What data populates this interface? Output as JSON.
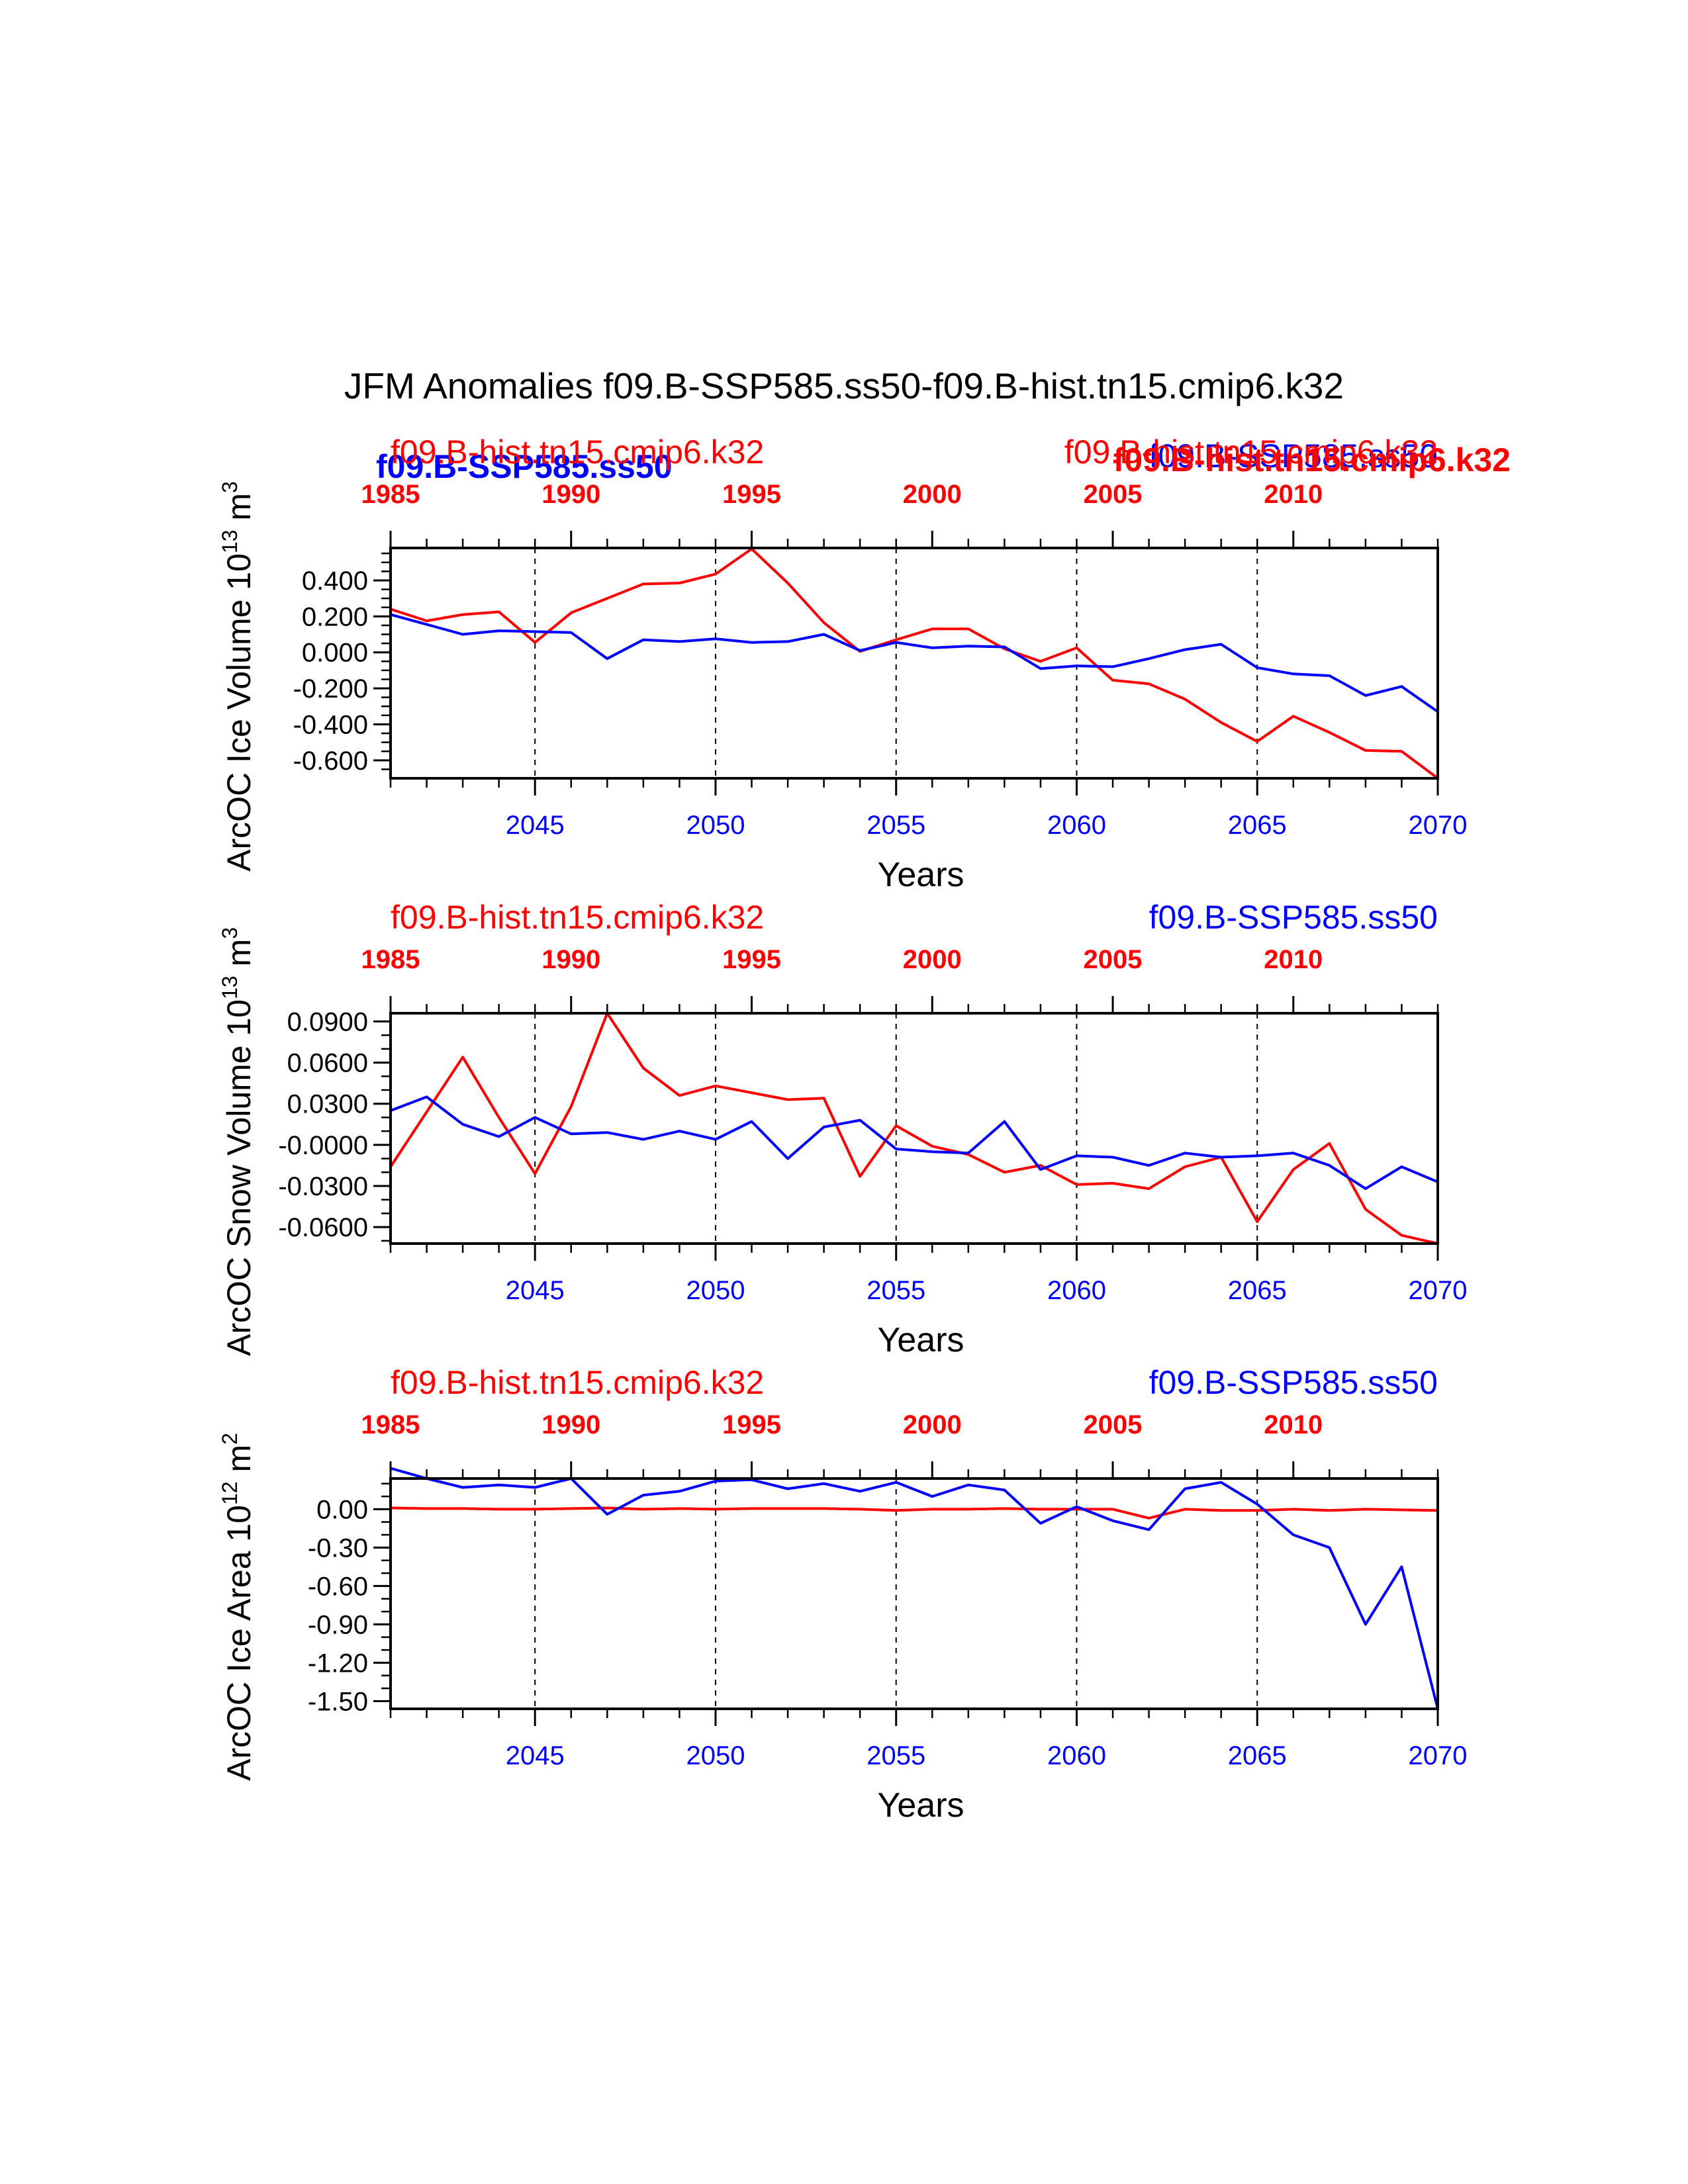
{
  "figure": {
    "title": "JFM Anomalies f09.B-SSP585.ss50-f09.B-hist.tn15.cmip6.k32",
    "colors": {
      "ssp": "#0000ff",
      "hist": "#ff0000",
      "frame": "#000000"
    }
  },
  "overlay_labels": [
    {
      "text": "f09.B-SSP585.ss50",
      "color": "#0000ff"
    },
    {
      "text": "f09.B-SSP585.ss50",
      "color": "#0000ff"
    },
    {
      "text": "f09.B-hist.tn15.cmip6.k32",
      "color": "#ff0000"
    }
  ],
  "chart_data": [
    {
      "type": "line",
      "ylabel": "ArcOC Ice Volume 10",
      "ylabel_exp": "13",
      "ylabel_unit": " m",
      "ylabel_unit_exp": "3",
      "xlabel": "Years",
      "x_bottom_ticks": [
        "2045",
        "2050",
        "2055",
        "2060",
        "2065",
        "2070"
      ],
      "x_top_ticks": [
        "1985",
        "1990",
        "1995",
        "2000",
        "2005",
        "2010"
      ],
      "xlim_bottom": [
        2041,
        2070
      ],
      "xlim_top": [
        1985,
        2014
      ],
      "ylim": [
        -0.7,
        0.58
      ],
      "y_ticks": [
        "0.400",
        "0.200",
        "0.000",
        "-0.200",
        "-0.400",
        "-0.600"
      ],
      "y_tick_values": [
        0.4,
        0.2,
        0.0,
        -0.2,
        -0.4,
        -0.6
      ],
      "y_minor_step": 0.05,
      "vlines": [
        2045,
        2050,
        2055,
        2060,
        2065
      ],
      "series": [
        {
          "name": "f09.B-hist.tn15.cmip6.k32",
          "color": "#ff0000",
          "x": [
            2041,
            2042,
            2043,
            2044,
            2045,
            2046,
            2047,
            2048,
            2049,
            2050,
            2051,
            2052,
            2053,
            2054,
            2055,
            2056,
            2057,
            2058,
            2059,
            2060,
            2061,
            2062,
            2063,
            2064,
            2065,
            2066,
            2067,
            2068,
            2069,
            2070
          ],
          "values": [
            0.24,
            0.175,
            0.21,
            0.225,
            0.055,
            0.22,
            0.3,
            0.38,
            0.385,
            0.435,
            0.575,
            0.385,
            0.165,
            0.005,
            0.07,
            0.13,
            0.13,
            0.02,
            -0.05,
            0.025,
            -0.155,
            -0.175,
            -0.26,
            -0.39,
            -0.495,
            -0.355,
            -0.445,
            -0.545,
            -0.55,
            -0.7
          ]
        },
        {
          "name": "f09.B-SSP585.ss50",
          "color": "#0000ff",
          "x": [
            2041,
            2042,
            2043,
            2044,
            2045,
            2046,
            2047,
            2048,
            2049,
            2050,
            2051,
            2052,
            2053,
            2054,
            2055,
            2056,
            2057,
            2058,
            2059,
            2060,
            2061,
            2062,
            2063,
            2064,
            2065,
            2066,
            2067,
            2068,
            2069,
            2070
          ],
          "values": [
            0.21,
            0.155,
            0.1,
            0.12,
            0.115,
            0.11,
            -0.035,
            0.07,
            0.06,
            0.075,
            0.055,
            0.06,
            0.1,
            0.01,
            0.055,
            0.025,
            0.035,
            0.03,
            -0.09,
            -0.075,
            -0.08,
            -0.035,
            0.015,
            0.045,
            -0.085,
            -0.12,
            -0.13,
            -0.24,
            -0.19,
            -0.33
          ]
        }
      ],
      "left_labels": [
        {
          "text": "f09.B-hist.tn15.cmip6.k32",
          "color": "#ff0000"
        }
      ],
      "right_labels": [
        {
          "text": "f09.B-hist.tn15.cmip6.k32",
          "color": "#ff0000"
        }
      ]
    },
    {
      "type": "line",
      "ylabel": "ArcOC Snow Volume 10",
      "ylabel_exp": "13",
      "ylabel_unit": " m",
      "ylabel_unit_exp": "3",
      "xlabel": "Years",
      "x_bottom_ticks": [
        "2045",
        "2050",
        "2055",
        "2060",
        "2065",
        "2070"
      ],
      "x_top_ticks": [
        "1985",
        "1990",
        "1995",
        "2000",
        "2005",
        "2010"
      ],
      "xlim_bottom": [
        2041,
        2070
      ],
      "xlim_top": [
        1985,
        2014
      ],
      "ylim": [
        -0.072,
        0.096
      ],
      "y_ticks": [
        "0.0900",
        "0.0600",
        "0.0300",
        "-0.0000",
        "-0.0300",
        "-0.0600"
      ],
      "y_tick_values": [
        0.09,
        0.06,
        0.03,
        0.0,
        -0.03,
        -0.06
      ],
      "y_minor_step": 0.01,
      "vlines": [
        2045,
        2050,
        2055,
        2060,
        2065
      ],
      "series": [
        {
          "name": "f09.B-hist.tn15.cmip6.k32",
          "color": "#ff0000",
          "x": [
            2041,
            2042,
            2043,
            2044,
            2045,
            2046,
            2047,
            2048,
            2049,
            2050,
            2051,
            2052,
            2053,
            2054,
            2055,
            2056,
            2057,
            2058,
            2059,
            2060,
            2061,
            2062,
            2063,
            2064,
            2065,
            2066,
            2067,
            2068,
            2069,
            2070
          ],
          "values": [
            -0.016,
            0.024,
            0.064,
            0.02,
            -0.021,
            0.028,
            0.096,
            0.056,
            0.036,
            0.043,
            0.038,
            0.033,
            0.034,
            -0.023,
            0.014,
            -0.001,
            -0.007,
            -0.02,
            -0.015,
            -0.029,
            -0.028,
            -0.032,
            -0.016,
            -0.009,
            -0.056,
            -0.018,
            0.001,
            -0.047,
            -0.066,
            -0.072
          ]
        },
        {
          "name": "f09.B-SSP585.ss50",
          "color": "#0000ff",
          "x": [
            2041,
            2042,
            2043,
            2044,
            2045,
            2046,
            2047,
            2048,
            2049,
            2050,
            2051,
            2052,
            2053,
            2054,
            2055,
            2056,
            2057,
            2058,
            2059,
            2060,
            2061,
            2062,
            2063,
            2064,
            2065,
            2066,
            2067,
            2068,
            2069,
            2070
          ],
          "values": [
            0.025,
            0.035,
            0.015,
            0.006,
            0.02,
            0.008,
            0.009,
            0.004,
            0.01,
            0.004,
            0.017,
            -0.01,
            0.013,
            0.018,
            -0.003,
            -0.005,
            -0.006,
            0.017,
            -0.018,
            -0.008,
            -0.009,
            -0.015,
            -0.006,
            -0.009,
            -0.008,
            -0.006,
            -0.015,
            -0.032,
            -0.016,
            -0.027
          ]
        }
      ],
      "left_labels": [
        {
          "text": "f09.B-hist.tn15.cmip6.k32",
          "color": "#ff0000"
        }
      ],
      "right_labels": [
        {
          "text": "f09.B-SSP585.ss50",
          "color": "#0000ff"
        }
      ]
    },
    {
      "type": "line",
      "ylabel": "ArcOC Ice Area 10",
      "ylabel_exp": "12",
      "ylabel_unit": " m",
      "ylabel_unit_exp": "2",
      "xlabel": "Years",
      "x_bottom_ticks": [
        "2045",
        "2050",
        "2055",
        "2060",
        "2065",
        "2070"
      ],
      "x_top_ticks": [
        "1985",
        "1990",
        "1995",
        "2000",
        "2005",
        "2010"
      ],
      "xlim_bottom": [
        2041,
        2070
      ],
      "xlim_top": [
        1985,
        2014
      ],
      "ylim": [
        -1.56,
        0.24
      ],
      "y_ticks": [
        "0.00",
        "-0.30",
        "-0.60",
        "-0.90",
        "-1.20",
        "-1.50"
      ],
      "y_tick_values": [
        0.0,
        -0.3,
        -0.6,
        -0.9,
        -1.2,
        -1.5
      ],
      "y_minor_step": 0.1,
      "vlines": [
        2045,
        2050,
        2055,
        2060,
        2065
      ],
      "series": [
        {
          "name": "f09.B-hist.tn15.cmip6.k32",
          "color": "#ff0000",
          "x": [
            2041,
            2042,
            2043,
            2044,
            2045,
            2046,
            2047,
            2048,
            2049,
            2050,
            2051,
            2052,
            2053,
            2054,
            2055,
            2056,
            2057,
            2058,
            2059,
            2060,
            2061,
            2062,
            2063,
            2064,
            2065,
            2066,
            2067,
            2068,
            2069,
            2070
          ],
          "values": [
            0.01,
            0.005,
            0.005,
            0.0,
            0.0,
            0.005,
            0.01,
            0.0,
            0.005,
            0.0,
            0.005,
            0.005,
            0.005,
            0.0,
            -0.01,
            0.0,
            0.0,
            0.005,
            0.0,
            0.0,
            0.0,
            -0.07,
            0.0,
            -0.01,
            -0.01,
            0.0,
            -0.01,
            0.0,
            -0.005,
            -0.01
          ]
        },
        {
          "name": "f09.B-SSP585.ss50",
          "color": "#0000ff",
          "x": [
            2041,
            2042,
            2043,
            2044,
            2045,
            2046,
            2047,
            2048,
            2049,
            2050,
            2051,
            2052,
            2053,
            2054,
            2055,
            2056,
            2057,
            2058,
            2059,
            2060,
            2061,
            2062,
            2063,
            2064,
            2065,
            2066,
            2067,
            2068,
            2069,
            2070
          ],
          "values": [
            0.32,
            0.24,
            0.17,
            0.19,
            0.17,
            0.24,
            -0.04,
            0.11,
            0.14,
            0.22,
            0.23,
            0.16,
            0.2,
            0.14,
            0.21,
            0.1,
            0.19,
            0.15,
            -0.11,
            0.02,
            -0.09,
            -0.16,
            0.16,
            0.21,
            0.04,
            -0.2,
            -0.3,
            -0.9,
            -0.45,
            -1.56
          ]
        }
      ],
      "left_labels": [
        {
          "text": "f09.B-hist.tn15.cmip6.k32",
          "color": "#ff0000"
        }
      ],
      "right_labels": [
        {
          "text": "f09.B-SSP585.ss50",
          "color": "#0000ff"
        }
      ]
    }
  ]
}
